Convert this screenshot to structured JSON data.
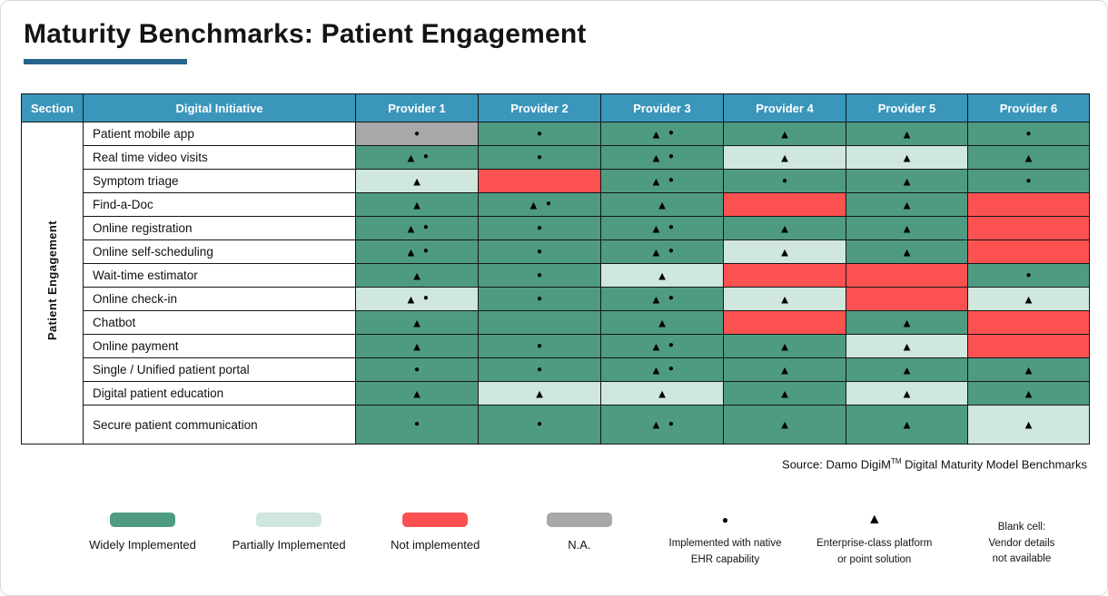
{
  "title": "Maturity Benchmarks: Patient Engagement",
  "colors": {
    "header_blue": "#3A96BB",
    "underline_blue": "#25648C",
    "widely": "#4E9B81",
    "partially": "#CFE7DC",
    "not_implemented": "#FC5151",
    "na": "#A8A8A8",
    "symbol_black": "#000000"
  },
  "header": {
    "section_col": "Section",
    "initiative_col": "Digital Initiative"
  },
  "chart_data": {
    "type": "heatmap",
    "title": "Maturity Benchmarks: Patient Engagement",
    "section": "Patient Engagement",
    "columns": [
      "Provider 1",
      "Provider 2",
      "Provider 3",
      "Provider 4",
      "Provider 5",
      "Provider 6"
    ],
    "status_codes": {
      "widely": "Widely Implemented",
      "partially": "Partially Implemented",
      "not": "Not implemented",
      "na": "N.A.",
      "blank": "Vendor details not available"
    },
    "symbol_codes": {
      "dot": "Implemented with native EHR capability",
      "tri": "Enterprise-class platform or point solution"
    },
    "rows": [
      {
        "label": "Patient mobile app",
        "cells": [
          {
            "status": "na",
            "symbols": [
              "dot"
            ]
          },
          {
            "status": "widely",
            "symbols": [
              "dot"
            ]
          },
          {
            "status": "widely",
            "symbols": [
              "tri",
              "dot"
            ]
          },
          {
            "status": "widely",
            "symbols": [
              "tri"
            ]
          },
          {
            "status": "widely",
            "symbols": [
              "tri"
            ]
          },
          {
            "status": "widely",
            "symbols": [
              "dot"
            ]
          }
        ]
      },
      {
        "label": "Real time video visits",
        "cells": [
          {
            "status": "widely",
            "symbols": [
              "tri",
              "dot"
            ]
          },
          {
            "status": "widely",
            "symbols": [
              "dot"
            ]
          },
          {
            "status": "widely",
            "symbols": [
              "tri",
              "dot"
            ]
          },
          {
            "status": "partially",
            "symbols": [
              "tri"
            ]
          },
          {
            "status": "partially",
            "symbols": [
              "tri"
            ]
          },
          {
            "status": "widely",
            "symbols": [
              "tri"
            ]
          }
        ]
      },
      {
        "label": "Symptom triage",
        "cells": [
          {
            "status": "partially",
            "symbols": [
              "tri"
            ]
          },
          {
            "status": "not",
            "symbols": []
          },
          {
            "status": "widely",
            "symbols": [
              "tri",
              "dot"
            ]
          },
          {
            "status": "widely",
            "symbols": [
              "dot"
            ]
          },
          {
            "status": "widely",
            "symbols": [
              "tri"
            ]
          },
          {
            "status": "widely",
            "symbols": [
              "dot"
            ]
          }
        ]
      },
      {
        "label": "Find-a-Doc",
        "cells": [
          {
            "status": "widely",
            "symbols": [
              "tri"
            ]
          },
          {
            "status": "widely",
            "symbols": [
              "tri",
              "dot"
            ]
          },
          {
            "status": "widely",
            "symbols": [
              "tri"
            ]
          },
          {
            "status": "not",
            "symbols": []
          },
          {
            "status": "widely",
            "symbols": [
              "tri"
            ]
          },
          {
            "status": "not",
            "symbols": []
          }
        ]
      },
      {
        "label": "Online registration",
        "cells": [
          {
            "status": "widely",
            "symbols": [
              "tri",
              "dot"
            ]
          },
          {
            "status": "widely",
            "symbols": [
              "dot"
            ]
          },
          {
            "status": "widely",
            "symbols": [
              "tri",
              "dot"
            ]
          },
          {
            "status": "widely",
            "symbols": [
              "tri"
            ]
          },
          {
            "status": "widely",
            "symbols": [
              "tri"
            ]
          },
          {
            "status": "not",
            "symbols": []
          }
        ]
      },
      {
        "label": "Online self-scheduling",
        "cells": [
          {
            "status": "widely",
            "symbols": [
              "tri",
              "dot"
            ]
          },
          {
            "status": "widely",
            "symbols": [
              "dot"
            ]
          },
          {
            "status": "widely",
            "symbols": [
              "tri",
              "dot"
            ]
          },
          {
            "status": "partially",
            "symbols": [
              "tri"
            ]
          },
          {
            "status": "widely",
            "symbols": [
              "tri"
            ]
          },
          {
            "status": "not",
            "symbols": []
          }
        ]
      },
      {
        "label": "Wait-time estimator",
        "cells": [
          {
            "status": "widely",
            "symbols": [
              "tri"
            ]
          },
          {
            "status": "widely",
            "symbols": [
              "dot"
            ]
          },
          {
            "status": "partially",
            "symbols": [
              "tri"
            ]
          },
          {
            "status": "not",
            "symbols": []
          },
          {
            "status": "not",
            "symbols": []
          },
          {
            "status": "widely",
            "symbols": [
              "dot"
            ]
          }
        ]
      },
      {
        "label": "Online check-in",
        "cells": [
          {
            "status": "partially",
            "symbols": [
              "tri",
              "dot"
            ]
          },
          {
            "status": "widely",
            "symbols": [
              "dot"
            ]
          },
          {
            "status": "widely",
            "symbols": [
              "tri",
              "dot"
            ]
          },
          {
            "status": "partially",
            "symbols": [
              "tri"
            ]
          },
          {
            "status": "not",
            "symbols": []
          },
          {
            "status": "partially",
            "symbols": [
              "tri"
            ]
          }
        ]
      },
      {
        "label": "Chatbot",
        "cells": [
          {
            "status": "widely",
            "symbols": [
              "tri"
            ]
          },
          {
            "status": "widely",
            "symbols": []
          },
          {
            "status": "widely",
            "symbols": [
              "tri"
            ]
          },
          {
            "status": "not",
            "symbols": []
          },
          {
            "status": "widely",
            "symbols": [
              "tri"
            ]
          },
          {
            "status": "not",
            "symbols": []
          }
        ]
      },
      {
        "label": "Online payment",
        "cells": [
          {
            "status": "widely",
            "symbols": [
              "tri"
            ]
          },
          {
            "status": "widely",
            "symbols": [
              "dot"
            ]
          },
          {
            "status": "widely",
            "symbols": [
              "tri",
              "dot"
            ]
          },
          {
            "status": "widely",
            "symbols": [
              "tri"
            ]
          },
          {
            "status": "partially",
            "symbols": [
              "tri"
            ]
          },
          {
            "status": "not",
            "symbols": []
          }
        ]
      },
      {
        "label": "Single / Unified patient portal",
        "cells": [
          {
            "status": "widely",
            "symbols": [
              "dot"
            ]
          },
          {
            "status": "widely",
            "symbols": [
              "dot"
            ]
          },
          {
            "status": "widely",
            "symbols": [
              "tri",
              "dot"
            ]
          },
          {
            "status": "widely",
            "symbols": [
              "tri"
            ]
          },
          {
            "status": "widely",
            "symbols": [
              "tri"
            ]
          },
          {
            "status": "widely",
            "symbols": [
              "tri"
            ]
          }
        ]
      },
      {
        "label": "Digital patient education",
        "cells": [
          {
            "status": "widely",
            "symbols": [
              "tri"
            ]
          },
          {
            "status": "partially",
            "symbols": [
              "tri"
            ]
          },
          {
            "status": "partially",
            "symbols": [
              "tri"
            ]
          },
          {
            "status": "widely",
            "symbols": [
              "tri"
            ]
          },
          {
            "status": "partially",
            "symbols": [
              "tri"
            ]
          },
          {
            "status": "widely",
            "symbols": [
              "tri"
            ]
          }
        ]
      },
      {
        "label": "Secure patient communication",
        "cells": [
          {
            "status": "widely",
            "symbols": [
              "dot"
            ]
          },
          {
            "status": "widely",
            "symbols": [
              "dot"
            ]
          },
          {
            "status": "widely",
            "symbols": [
              "tri",
              "dot"
            ]
          },
          {
            "status": "widely",
            "symbols": [
              "tri"
            ]
          },
          {
            "status": "widely",
            "symbols": [
              "tri"
            ]
          },
          {
            "status": "partially",
            "symbols": [
              "tri"
            ]
          }
        ]
      }
    ]
  },
  "source": {
    "text_before_tm": "Source: Damo DigiM",
    "tm": "TM",
    "text_after_tm": " Digital Maturity Model Benchmarks"
  },
  "legend": {
    "widely": "Widely Implemented",
    "partially": "Partially Implemented",
    "not_implemented": "Not implemented",
    "na": "N.A.",
    "dot_symbol": "●",
    "dot_line1": "Implemented with native",
    "dot_line2": "EHR capability",
    "tri_symbol": "▲",
    "tri_line1": "Enterprise-class platform",
    "tri_line2": "or point solution",
    "blank_line1": "Blank cell:",
    "blank_line2": "Vendor details",
    "blank_line3": "not available"
  }
}
